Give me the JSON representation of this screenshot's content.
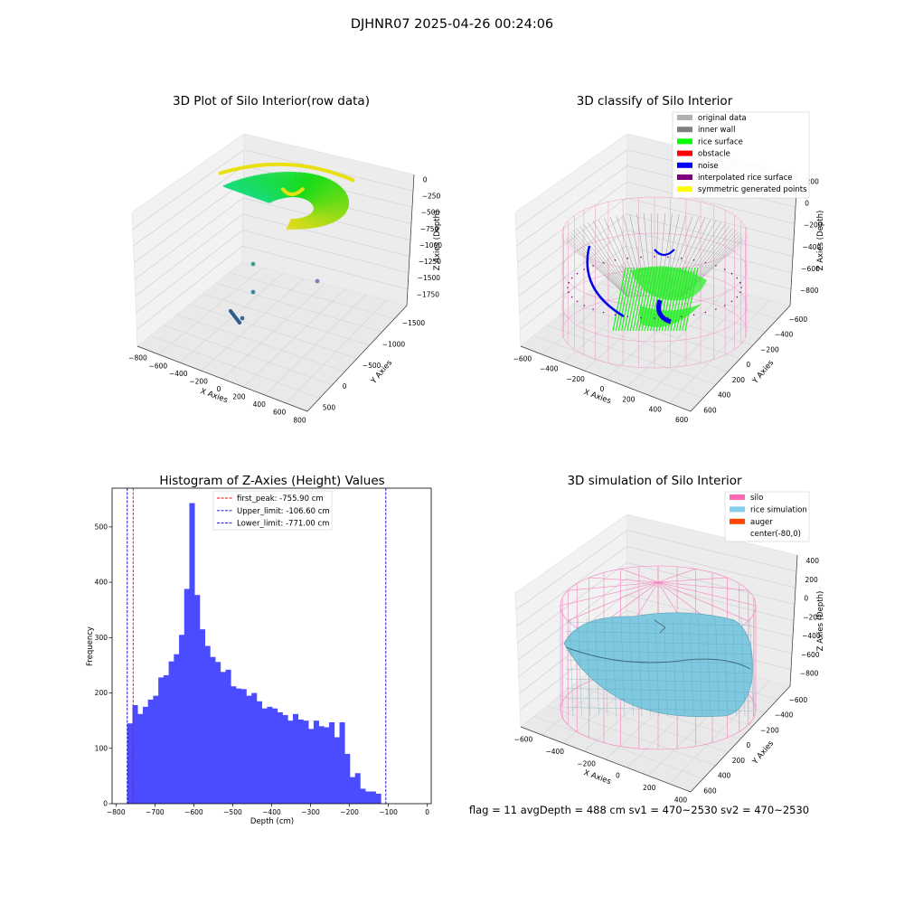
{
  "figure": {
    "suptitle": "DJHNR07 2025-04-26 00:24:06",
    "footer": "flag = 11   avgDepth = 488 cm  sv1 = 470~2530  sv2 = 470~2530"
  },
  "colors": {
    "hist_bar": "#4b4bff",
    "first_peak_line": "#ff0000",
    "limit_line": "#0000cc",
    "pane": "#f2f2f2",
    "silo_wire": "#f77fbf",
    "rice_surface": "#7ec8e0",
    "rice_green": "#22ee22",
    "noise_blue": "#0000ee",
    "wall_gray": "#9a9a9a"
  },
  "panels": {
    "raw": {
      "title": "3D Plot of Silo Interior(row data)",
      "xlabel": "X Axies",
      "ylabel": "Y Axies",
      "zlabel": "Z Axies (Depth)",
      "xticks": [
        "−800",
        "−600",
        "−400",
        "−200",
        "0",
        "200",
        "400",
        "600",
        "800"
      ],
      "yticks": [
        "500",
        "0",
        "−500",
        "−1000",
        "−1500"
      ],
      "zticks": [
        "0",
        "−250",
        "−500",
        "−750",
        "−1000",
        "−1250",
        "−1500",
        "−1750"
      ]
    },
    "classify": {
      "title": "3D classify of Silo Interior",
      "xlabel": "X Axies",
      "ylabel": "Y Axies",
      "zlabel": "Z Axies (Depth)",
      "xticks": [
        "−600",
        "−400",
        "−200",
        "0",
        "200",
        "400",
        "600"
      ],
      "yticks": [
        "600",
        "400",
        "200",
        "0",
        "−200",
        "−400",
        "−600"
      ],
      "zticks": [
        "200",
        "0",
        "−200",
        "−400",
        "−600",
        "−800"
      ],
      "legend": [
        {
          "label": "original data",
          "color": "#b0b0b0"
        },
        {
          "label": "inner wall",
          "color": "#808080"
        },
        {
          "label": "rice surface",
          "color": "#00ff00"
        },
        {
          "label": "obstacle",
          "color": "#ff0000"
        },
        {
          "label": "noise",
          "color": "#0000ff"
        },
        {
          "label": "interpolated rice surface",
          "color": "#800080"
        },
        {
          "label": "symmetric generated points",
          "color": "#ffff00"
        }
      ]
    },
    "simulation": {
      "title": "3D simulation of Silo Interior",
      "xlabel": "X Axies",
      "ylabel": "Y Axies",
      "zlabel": "Z Axies (Depth)",
      "xticks": [
        "−600",
        "−400",
        "−200",
        "0",
        "200",
        "400"
      ],
      "yticks": [
        "600",
        "400",
        "200",
        "0",
        "−200",
        "−400",
        "−600"
      ],
      "zticks": [
        "400",
        "200",
        "0",
        "−200",
        "−400",
        "−600",
        "−800"
      ],
      "legend": [
        {
          "label": "silo",
          "color": "#ff69b4"
        },
        {
          "label": "rice simulation",
          "color": "#87ceeb"
        },
        {
          "label": "auger",
          "color": "#ff4500"
        },
        {
          "label": "center(-80,0)",
          "color": "#ffffff"
        }
      ]
    }
  },
  "chart_data": {
    "type": "bar",
    "title": "Histogram of Z-Axies (Height) Values",
    "xlabel": "Depth (cm)",
    "ylabel": "Frequency",
    "xlim": [
      -810,
      10
    ],
    "ylim": [
      0,
      570
    ],
    "xticks": [
      -800,
      -700,
      -600,
      -500,
      -400,
      -300,
      -200,
      -100,
      0
    ],
    "yticks": [
      0,
      100,
      200,
      300,
      400,
      500
    ],
    "bin_start": -771,
    "bin_width": 13.3,
    "values": [
      145,
      178,
      162,
      175,
      188,
      195,
      228,
      232,
      257,
      270,
      305,
      388,
      543,
      377,
      315,
      285,
      265,
      256,
      238,
      242,
      212,
      208,
      207,
      195,
      200,
      185,
      172,
      175,
      172,
      165,
      160,
      150,
      162,
      152,
      150,
      135,
      150,
      140,
      138,
      147,
      120,
      147,
      90,
      48,
      55,
      27,
      22,
      22,
      18
    ],
    "vlines": [
      {
        "label": "first_peak: -755.90 cm",
        "x": -755.9,
        "color": "#ff0000"
      },
      {
        "label": "Upper_limit: -106.60 cm",
        "x": -106.6,
        "color": "#0000cc"
      },
      {
        "label": "Lower_limit: -771.00 cm",
        "x": -771.0,
        "color": "#0000cc"
      }
    ],
    "legend_position": "top-center",
    "grid": false
  }
}
